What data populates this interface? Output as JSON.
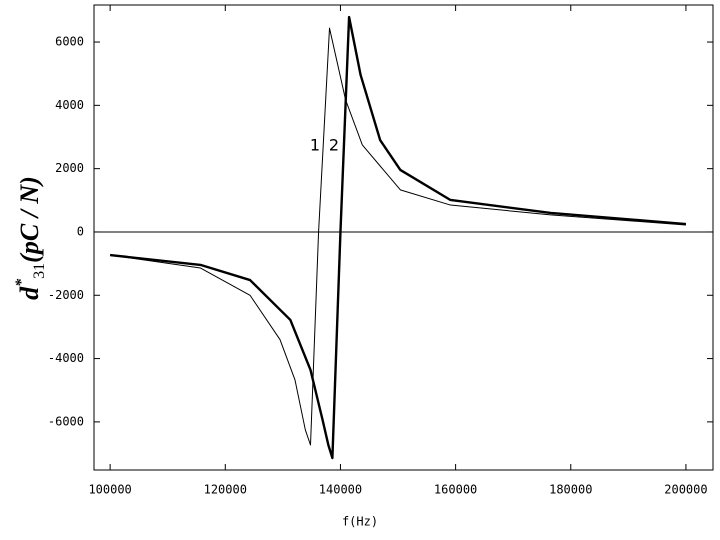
{
  "chart_data": {
    "type": "line",
    "xlabel": "f(Hz)",
    "ylabel": {
      "symbol": "d",
      "sup": "*",
      "sub": "31",
      "unit": "(pC / N)"
    },
    "xlim": [
      97200,
      204700
    ],
    "ylim": [
      -7520,
      7170
    ],
    "xticks": [
      100000,
      120000,
      140000,
      160000,
      180000,
      200000
    ],
    "yticks": [
      -6000,
      -4000,
      -2000,
      0,
      2000,
      4000,
      6000
    ],
    "series": [
      {
        "name": "1",
        "color": "#000000",
        "x": [
          100000,
          115700,
          124300,
          129500,
          132100,
          133900,
          134800,
          136200,
          138100,
          140900,
          143800,
          150400,
          159100,
          176500,
          200000
        ],
        "values": [
          -730,
          -1140,
          -2000,
          -3400,
          -4670,
          -6250,
          -6730,
          0,
          6440,
          4170,
          2750,
          1330,
          850,
          540,
          220
        ]
      },
      {
        "name": "2",
        "color": "#000000",
        "x": [
          100000,
          115700,
          124300,
          131300,
          134800,
          136900,
          137900,
          138600,
          140000,
          141500,
          143500,
          146900,
          150400,
          159100,
          176500,
          200000
        ],
        "values": [
          -730,
          -1040,
          -1520,
          -2780,
          -4360,
          -5940,
          -6730,
          -7140,
          0,
          6790,
          4960,
          2900,
          1960,
          1010,
          600,
          250
        ]
      }
    ]
  }
}
